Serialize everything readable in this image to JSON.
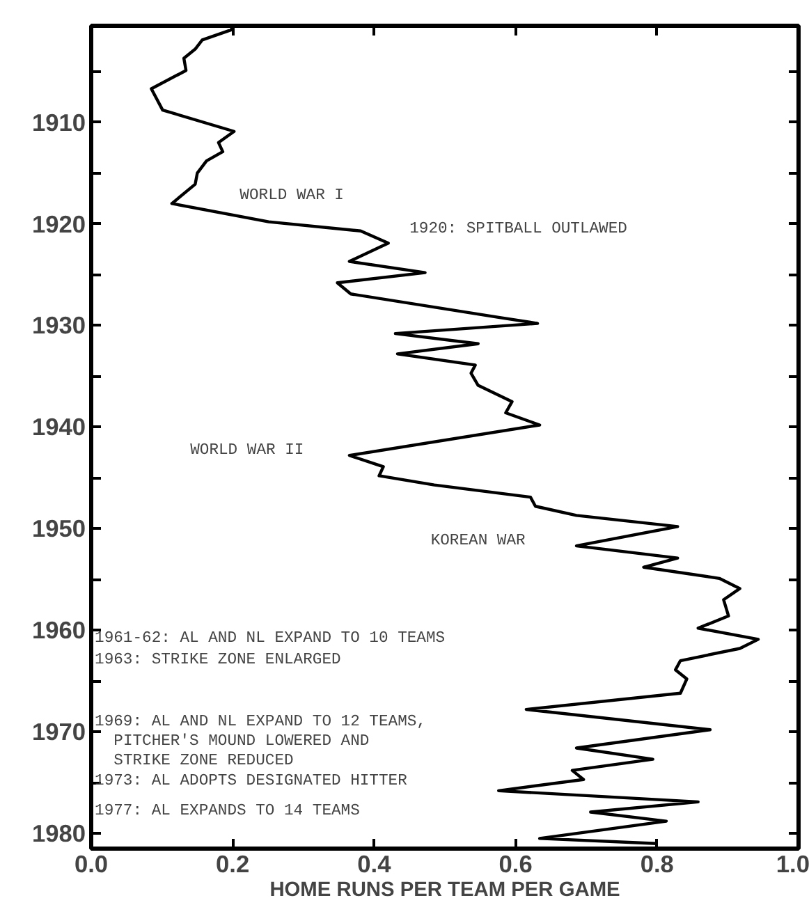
{
  "chart_data": {
    "type": "line",
    "xlabel": "HOME RUNS PER TEAM PER GAME",
    "orientation": "horizontal",
    "x": [
      1900.5,
      1900.9,
      1901.9,
      1902.8,
      1903.7,
      1904.9,
      1906.7,
      1908.8,
      1910.9,
      1912,
      1912.9,
      1913.8,
      1915,
      1916.1,
      1918,
      1919.8,
      1920.7,
      1921.9,
      1923.7,
      1924.8,
      1925.8,
      1926.9,
      1929.2,
      1929.8,
      1930.8,
      1931.8,
      1932.8,
      1933.9,
      1934.7,
      1935.9,
      1937.5,
      1938.6,
      1939.8,
      1942.8,
      1943.9,
      1944.8,
      1945.7,
      1946.9,
      1947.8,
      1948.7,
      1949.8,
      1951.7,
      1952.9,
      1953.8,
      1954.9,
      1955.9,
      1957,
      1958.6,
      1959.8,
      1960.9,
      1961.8,
      1963,
      1963.9,
      1964.8,
      1966.2,
      1967.8,
      1969.8,
      1971.6,
      1972.7,
      1973.8,
      1974.7,
      1975.8,
      1976.9,
      1977.9,
      1978.8,
      1980.5,
      1981
    ],
    "series": [
      {
        "color": "#000000",
        "values": [
          0.2,
          0.198,
          0.157,
          0.147,
          0.131,
          0.134,
          0.085,
          0.101,
          0.202,
          0.18,
          0.186,
          0.163,
          0.15,
          0.147,
          0.114,
          0.251,
          0.381,
          0.42,
          0.365,
          0.472,
          0.348,
          0.367,
          0.576,
          0.631,
          0.43,
          0.547,
          0.433,
          0.543,
          0.537,
          0.547,
          0.595,
          0.586,
          0.634,
          0.365,
          0.413,
          0.407,
          0.485,
          0.621,
          0.628,
          0.686,
          0.829,
          0.686,
          0.829,
          0.781,
          0.888,
          0.917,
          0.894,
          0.901,
          0.858,
          0.943,
          0.917,
          0.833,
          0.826,
          0.842,
          0.833,
          0.615,
          0.875,
          0.686,
          0.794,
          0.68,
          0.696,
          0.576,
          0.858,
          0.706,
          0.813,
          0.634,
          0.8
        ]
      }
    ],
    "xlim": [
      0,
      1
    ],
    "xticks": [
      {
        "value": 0,
        "label": "0.0"
      },
      0.2,
      0.4,
      0.6,
      0.8,
      {
        "value": 1,
        "label": "1.0"
      }
    ],
    "ylim": [
      1981.5,
      1900.5
    ],
    "yticks": [
      {
        "value": 1905,
        "label": null
      },
      1910,
      {
        "value": 1915,
        "label": null
      },
      1920,
      {
        "value": 1925,
        "label": null
      },
      1930,
      {
        "value": 1935,
        "label": null
      },
      1940,
      {
        "value": 1945,
        "label": null
      },
      1950,
      {
        "value": 1955,
        "label": null
      },
      1960,
      {
        "value": 1965,
        "label": null
      },
      1970,
      {
        "value": 1975,
        "label": null
      },
      1980
    ],
    "grid": false,
    "marker": "none",
    "line_style": "solid",
    "annotations": [
      "WORLD WAR I",
      "1920: SPITBALL OUTLAWED",
      "WORLD WAR II",
      "KOREAN WAR",
      "1961-62: AL AND NL EXPAND TO 10 TEAMS",
      "1963: STRIKE ZONE ENLARGED",
      "1969: AL AND NL EXPAND TO 12 TEAMS,\n  PITCHER'S MOUND LOWERED AND\n  STRIKE ZONE REDUCED",
      "1973: AL ADOPTS DESIGNATED HITTER",
      "1977: AL EXPANDS TO 14 TEAMS"
    ]
  }
}
